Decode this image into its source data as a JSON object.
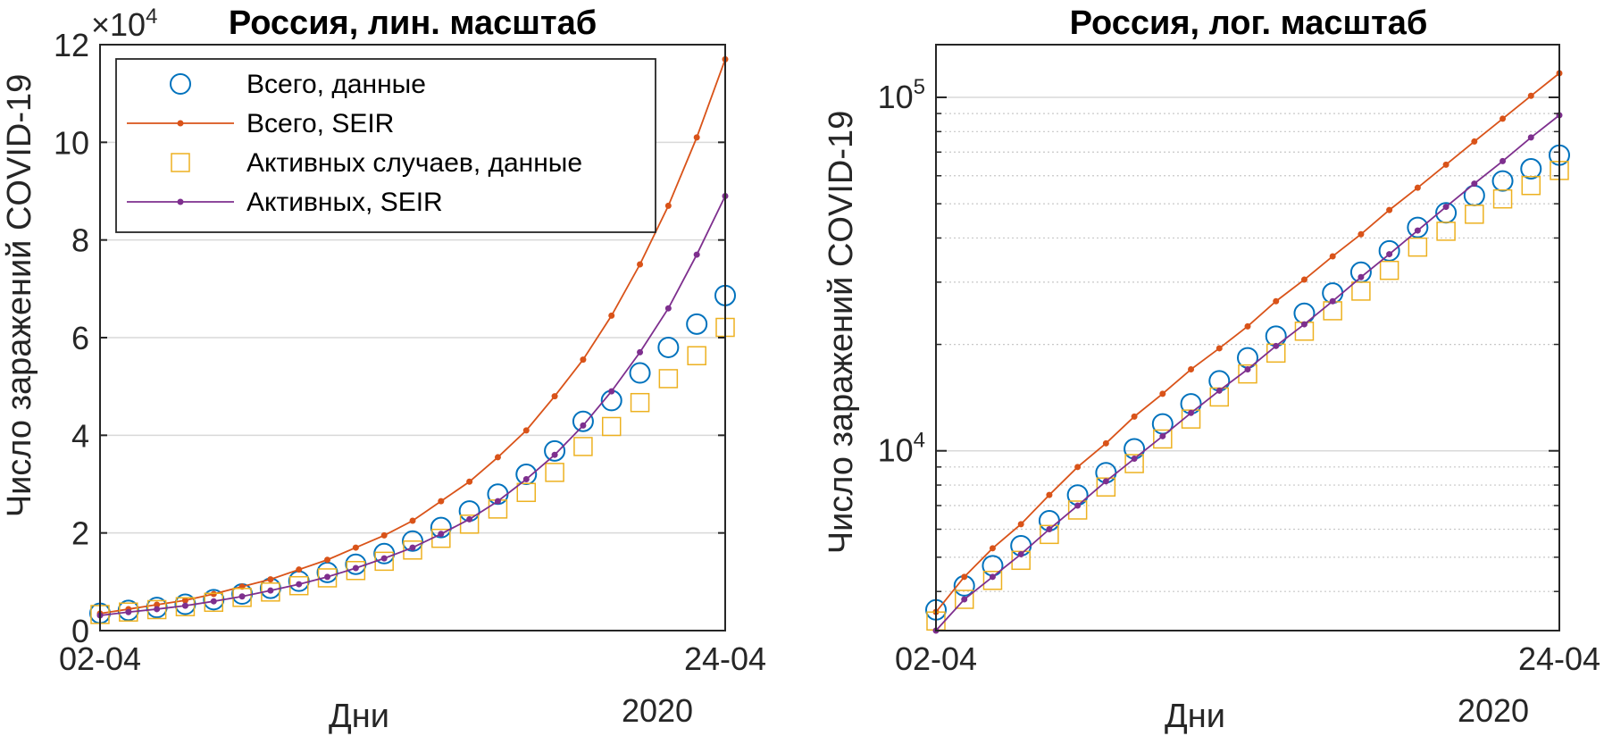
{
  "figure": {
    "background": "#ffffff",
    "axis_color": "#262626",
    "grid_color": "#d9d9d9"
  },
  "colors": {
    "total_data": "#0072BD",
    "total_seir": "#D95319",
    "active_data": "#EDB120",
    "active_seir": "#7E2F8E"
  },
  "chart_data": [
    {
      "type": "line",
      "title": "Россия, лин. масштаб",
      "xlabel": "Дни",
      "ylabel": "Число заражений COVID-19",
      "x_tick_labels": [
        "02-04",
        "24-04"
      ],
      "x_secondary_label": "2020",
      "y_exponent_prefix": "×10",
      "y_exponent_power": "4",
      "y_scale": "linear",
      "y_ticks": [
        0,
        20000,
        40000,
        60000,
        80000,
        100000,
        120000
      ],
      "y_tick_labels": [
        "0",
        "2",
        "4",
        "6",
        "8",
        "10",
        "12"
      ],
      "xlim": [
        0,
        22
      ],
      "ylim": [
        0,
        120000
      ],
      "grid": "horizontal",
      "legend_position": "top-left",
      "legend": [
        {
          "label": "Всего, данные",
          "marker": "circle",
          "color_key": "total_data"
        },
        {
          "label": "Всего, SEIR",
          "marker": "line-dot",
          "color_key": "total_seir"
        },
        {
          "label": "Активных случаев, данные",
          "marker": "square",
          "color_key": "active_data"
        },
        {
          "label": "Активных, SEIR",
          "marker": "line-dot",
          "color_key": "active_seir"
        }
      ],
      "x": [
        0,
        1,
        2,
        3,
        4,
        5,
        6,
        7,
        8,
        9,
        10,
        11,
        12,
        13,
        14,
        15,
        16,
        17,
        18,
        19,
        20,
        21,
        22
      ],
      "series": [
        {
          "name": "Всего, данные",
          "marker": "circle",
          "color_key": "total_data",
          "values": [
            3548,
            4149,
            4731,
            5389,
            6343,
            7497,
            8672,
            10131,
            11917,
            13584,
            15770,
            18328,
            21102,
            24490,
            27938,
            32008,
            36793,
            42853,
            47121,
            52763,
            57999,
            62773,
            68622
          ]
        },
        {
          "name": "Всего, SEIR",
          "marker": "line-dot",
          "color_key": "total_seir",
          "values": [
            3500,
            4400,
            5300,
            6200,
            7500,
            9000,
            10500,
            12500,
            14500,
            17000,
            19500,
            22500,
            26500,
            30500,
            35500,
            41000,
            48000,
            55500,
            64500,
            75000,
            87000,
            101000,
            117000
          ]
        },
        {
          "name": "Активных случаев, данные",
          "marker": "square",
          "color_key": "active_data",
          "values": [
            3300,
            3800,
            4300,
            4900,
            5800,
            6800,
            7900,
            9200,
            10800,
            12300,
            14200,
            16500,
            18900,
            21800,
            24900,
            28300,
            32400,
            37700,
            41800,
            46700,
            51600,
            56300,
            62100
          ]
        },
        {
          "name": "Активных, SEIR",
          "marker": "line-dot",
          "color_key": "active_seir",
          "values": [
            3100,
            3800,
            4400,
            5100,
            6000,
            7000,
            8200,
            9500,
            11000,
            12800,
            14800,
            17000,
            19800,
            22800,
            26500,
            31000,
            36000,
            42000,
            49000,
            57000,
            66000,
            77000,
            89000
          ]
        }
      ]
    },
    {
      "type": "line",
      "title": "Россия, лог. масштаб",
      "xlabel": "Дни",
      "ylabel": "Число заражений COVID-19",
      "x_tick_labels": [
        "02-04",
        "24-04"
      ],
      "x_secondary_label": "2020",
      "y_scale": "log",
      "y_tick_base": "10",
      "y_tick_powers": [
        "4",
        "5"
      ],
      "xlim": [
        0,
        22
      ],
      "ylim": [
        3100,
        117000
      ],
      "grid": "horizontal-major-minor",
      "x": [
        0,
        1,
        2,
        3,
        4,
        5,
        6,
        7,
        8,
        9,
        10,
        11,
        12,
        13,
        14,
        15,
        16,
        17,
        18,
        19,
        20,
        21,
        22
      ],
      "series": [
        {
          "name": "Всего, данные",
          "marker": "circle",
          "color_key": "total_data",
          "values": [
            3548,
            4149,
            4731,
            5389,
            6343,
            7497,
            8672,
            10131,
            11917,
            13584,
            15770,
            18328,
            21102,
            24490,
            27938,
            32008,
            36793,
            42853,
            47121,
            52763,
            57999,
            62773,
            68622
          ]
        },
        {
          "name": "Всего, SEIR",
          "marker": "line-dot",
          "color_key": "total_seir",
          "values": [
            3500,
            4400,
            5300,
            6200,
            7500,
            9000,
            10500,
            12500,
            14500,
            17000,
            19500,
            22500,
            26500,
            30500,
            35500,
            41000,
            48000,
            55500,
            64500,
            75000,
            87000,
            101000,
            117000
          ]
        },
        {
          "name": "Активных случаев, данные",
          "marker": "square",
          "color_key": "active_data",
          "values": [
            3300,
            3800,
            4300,
            4900,
            5800,
            6800,
            7900,
            9200,
            10800,
            12300,
            14200,
            16500,
            18900,
            21800,
            24900,
            28300,
            32400,
            37700,
            41800,
            46700,
            51600,
            56300,
            62100
          ]
        },
        {
          "name": "Активных, SEIR",
          "marker": "line-dot",
          "color_key": "active_seir",
          "values": [
            3100,
            3800,
            4400,
            5100,
            6000,
            7000,
            8200,
            9500,
            11000,
            12800,
            14800,
            17000,
            19800,
            22800,
            26500,
            31000,
            36000,
            42000,
            49000,
            57000,
            66000,
            77000,
            89000
          ]
        }
      ]
    }
  ]
}
